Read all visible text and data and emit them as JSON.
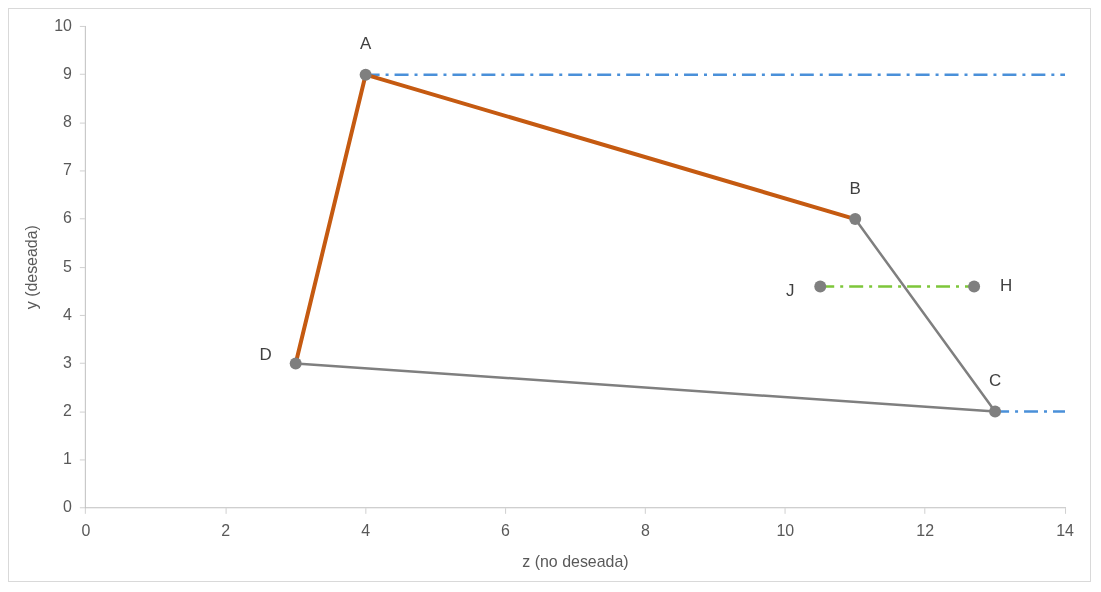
{
  "chart_data": {
    "type": "line",
    "xlabel": "z (no deseada)",
    "ylabel": "y (deseada)",
    "xlim": [
      0,
      14
    ],
    "xticks": [
      0,
      2,
      4,
      6,
      8,
      10,
      12,
      14
    ],
    "ylim": [
      0,
      10
    ],
    "yticks": [
      0,
      1,
      2,
      3,
      4,
      5,
      6,
      7,
      8,
      9,
      10
    ],
    "grid": false,
    "legend": false,
    "series": [
      {
        "type": "line",
        "color": "#c55a11",
        "x": [
          3,
          4,
          11
        ],
        "values": [
          3,
          9,
          6
        ],
        "marker": "none",
        "line_style": "solid"
      },
      {
        "type": "line",
        "color": "#7f7f7f",
        "x": [
          11,
          13,
          3
        ],
        "values": [
          6,
          2,
          3
        ],
        "marker": "none",
        "line_style": "solid"
      },
      {
        "type": "line",
        "color": "#4a90d9",
        "x": [
          4,
          14
        ],
        "values": [
          9,
          9
        ],
        "marker": "none",
        "line_style": "dashed"
      },
      {
        "type": "line",
        "color": "#4a90d9",
        "x": [
          13,
          14
        ],
        "values": [
          2,
          2
        ],
        "marker": "none",
        "line_style": "dashed"
      },
      {
        "type": "line",
        "color": "#7dc63a",
        "x": [
          10.5,
          12.7
        ],
        "values": [
          4.6,
          4.6
        ],
        "marker": "none",
        "line_style": "dashed"
      },
      {
        "type": "scatter",
        "color": "#7f7f7f",
        "x": [
          4,
          11,
          13,
          3,
          10.5,
          12.7
        ],
        "values": [
          9,
          6,
          2,
          3,
          4.6,
          4.6
        ],
        "marker": "circle"
      }
    ],
    "annotations": [
      {
        "text": "A",
        "x": 4,
        "y": 9
      },
      {
        "text": "B",
        "x": 11,
        "y": 6
      },
      {
        "text": "C",
        "x": 13,
        "y": 2
      },
      {
        "text": "D",
        "x": 3,
        "y": 3
      },
      {
        "text": "J",
        "x": 10.5,
        "y": 4.6
      },
      {
        "text": "H",
        "x": 12.7,
        "y": 4.6
      }
    ]
  }
}
